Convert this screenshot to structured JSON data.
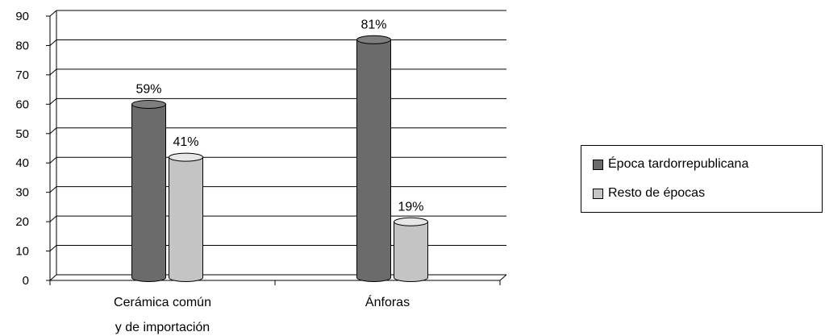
{
  "chart_data": {
    "type": "bar",
    "style": "3d-cylinder",
    "categories": [
      "Cerámica común\ny de importación",
      "Ánforas"
    ],
    "series": [
      {
        "name": "Época tardorrepublicana",
        "values": [
          59,
          81
        ],
        "labels": [
          "59%",
          "81%"
        ],
        "color": "#6b6b6b"
      },
      {
        "name": "Resto de épocas",
        "values": [
          41,
          19
        ],
        "labels": [
          "41%",
          "19%"
        ],
        "color": "#c4c4c4"
      }
    ],
    "yticks": [
      "0",
      "10",
      "20",
      "30",
      "40",
      "50",
      "60",
      "70",
      "80",
      "90"
    ],
    "ylim": [
      0,
      90
    ],
    "grid": true,
    "legend_position": "right"
  }
}
